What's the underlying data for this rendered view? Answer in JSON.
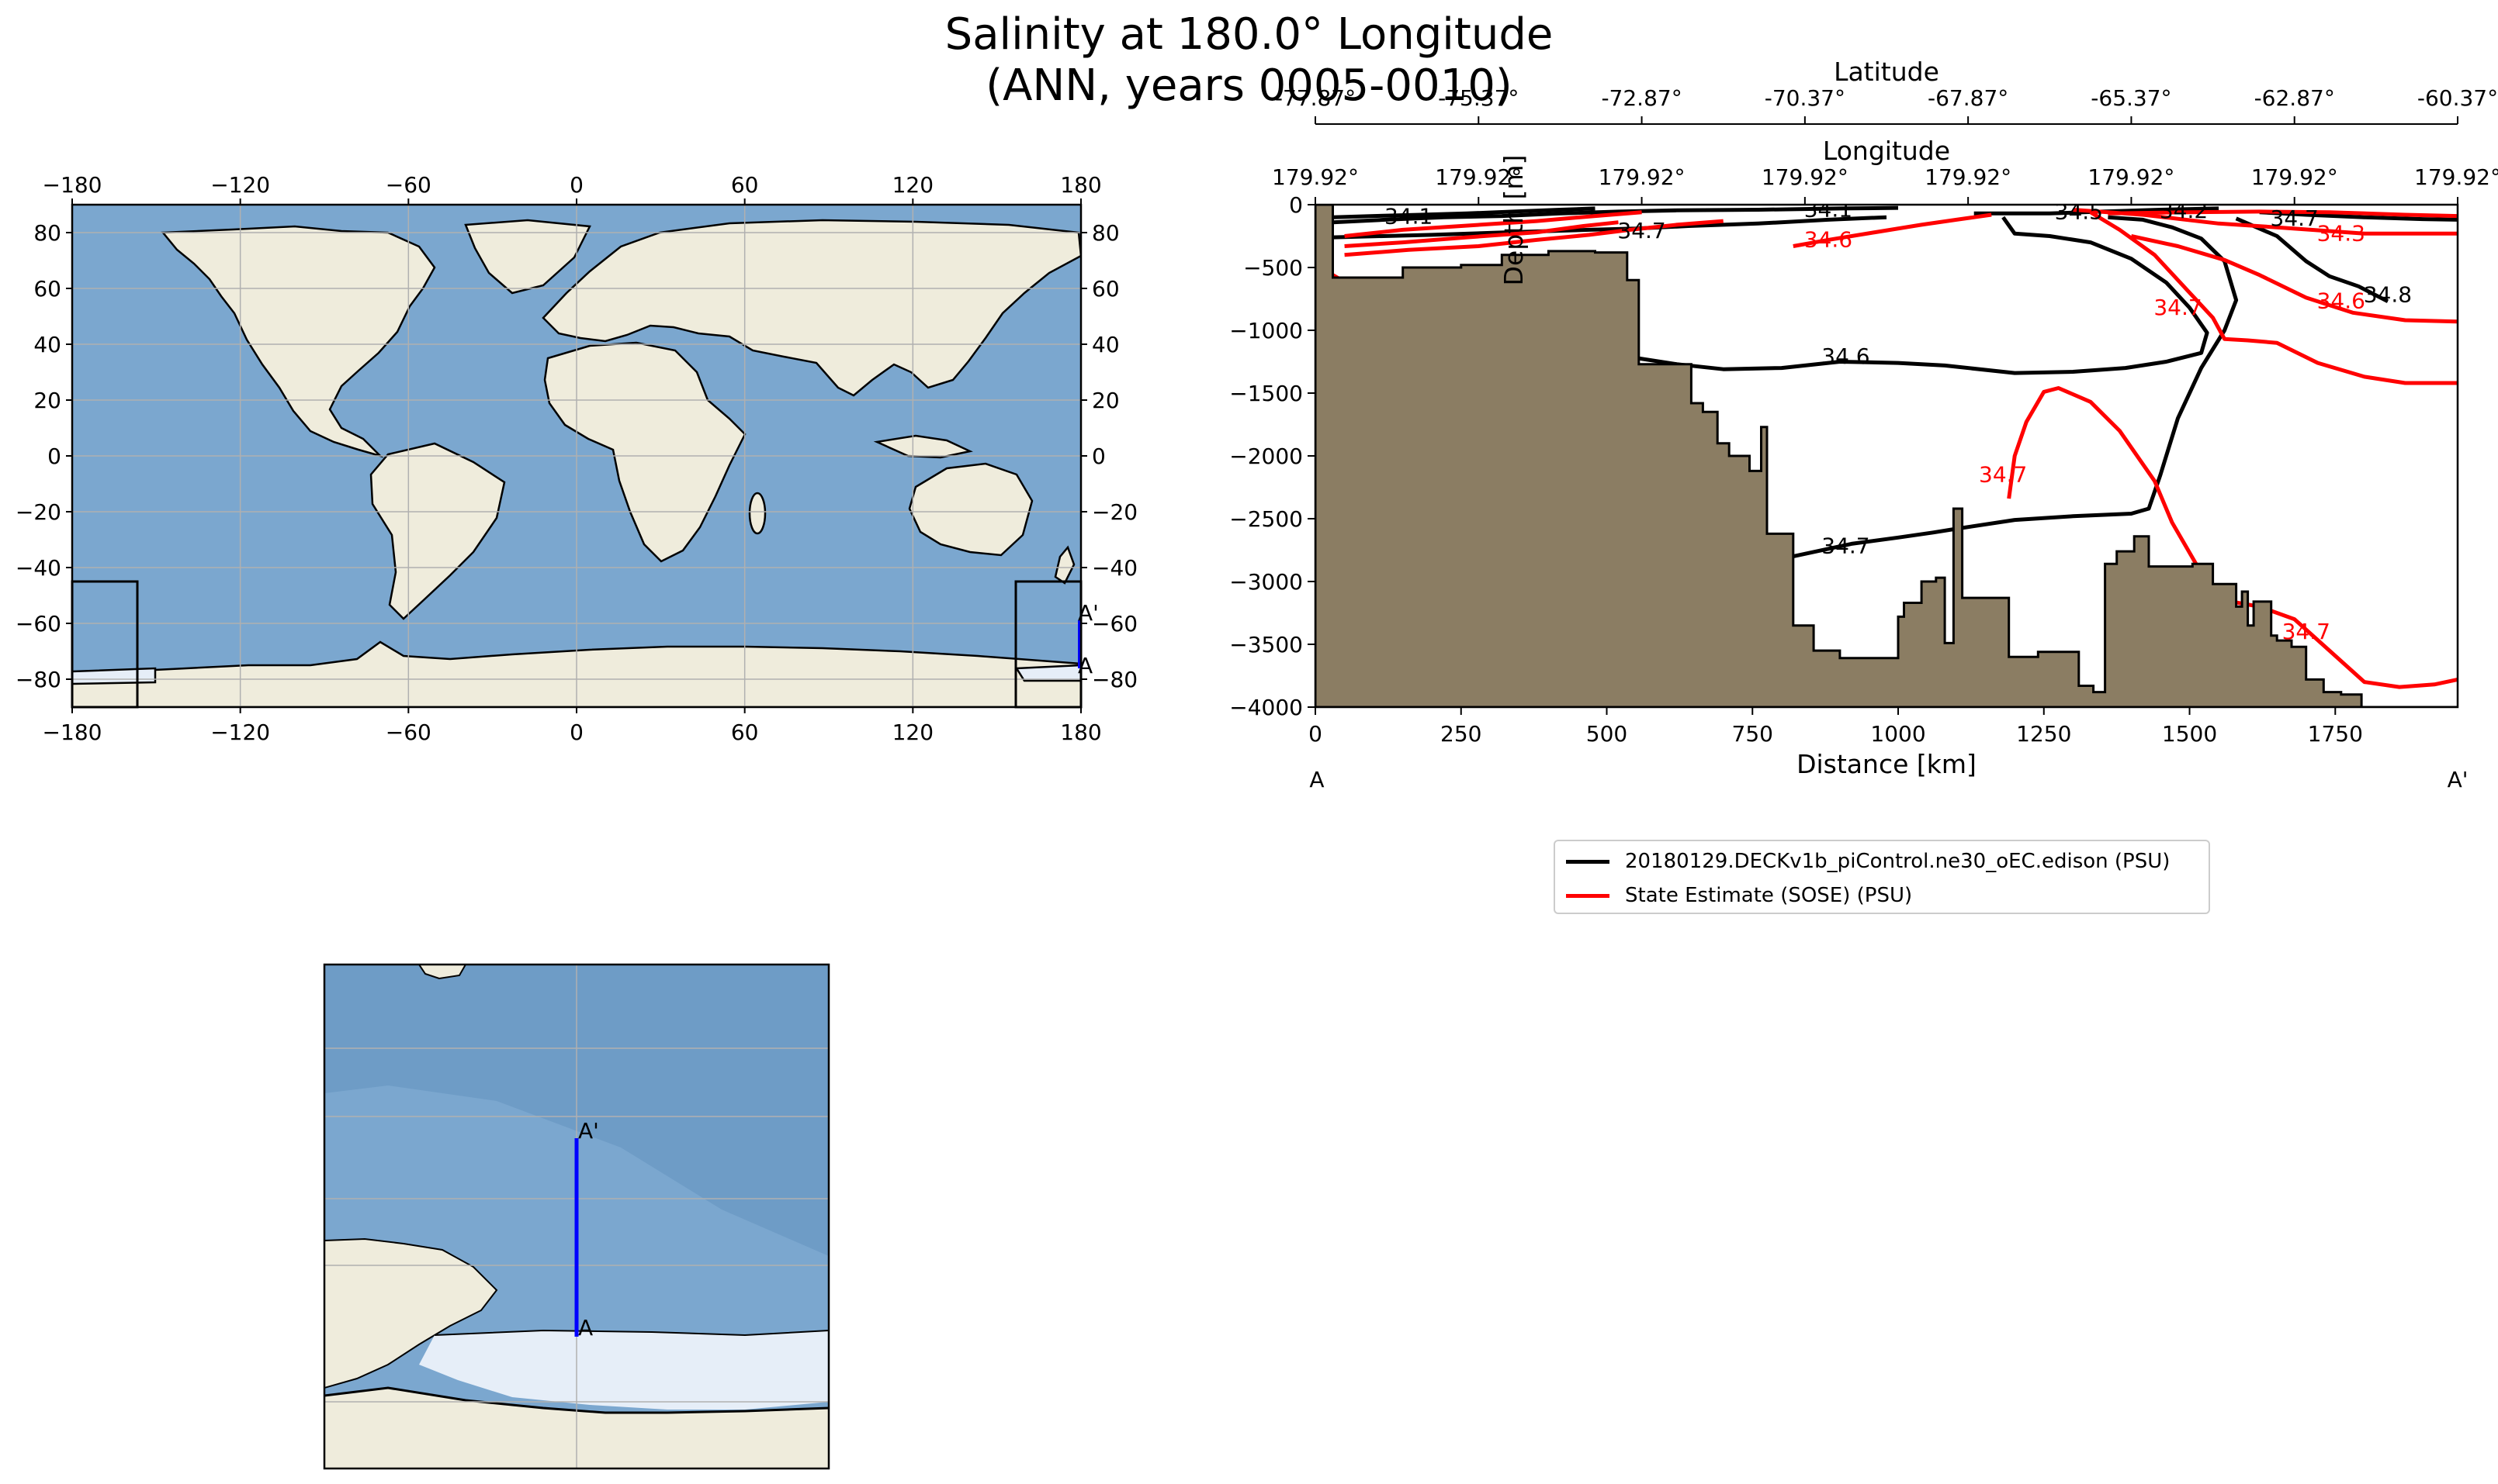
{
  "title_line1": "Salinity at 180.0° Longitude",
  "title_line2": "(ANN, years 0005-0010)",
  "colors": {
    "land": "#efecdc",
    "ocean": "#7ba7cf",
    "ocean_deep": "#6e9cc6",
    "ice": "#e6eef8",
    "bathymetry": "#8b7d63",
    "model": "#000000",
    "obs": "#ff0000",
    "transect": "#0000ff"
  },
  "map": {
    "top_ticks": [
      "−180",
      "−120",
      "−60",
      "0",
      "60",
      "120",
      "180"
    ],
    "bottom_ticks": [
      "−180",
      "−120",
      "−60",
      "0",
      "60",
      "120",
      "180"
    ],
    "left_ticks": [
      "80",
      "60",
      "40",
      "20",
      "0",
      "−20",
      "−40",
      "−60",
      "−80"
    ],
    "right_ticks": [
      "80",
      "60",
      "40",
      "20",
      "0",
      "−20",
      "−40",
      "−60",
      "−80"
    ],
    "label_start": "A",
    "label_end": "A'"
  },
  "inset": {
    "label_start": "A",
    "label_end": "A'"
  },
  "section": {
    "latitude_label": "Latitude",
    "longitude_label": "Longitude",
    "latitude_ticks": [
      "-77.87°",
      "-75.37°",
      "-72.87°",
      "-70.37°",
      "-67.87°",
      "-65.37°",
      "-62.87°",
      "-60.37°"
    ],
    "longitude_ticks": [
      "179.92°",
      "179.92°",
      "179.92°",
      "179.92°",
      "179.92°",
      "179.92°",
      "179.92°",
      "179.92°"
    ],
    "start_label": "A",
    "end_label": "A'"
  },
  "legend": [
    {
      "label": "20180129.DECKv1b_piControl.ne30_oEC.edison (PSU)",
      "color": "#000000"
    },
    {
      "label": "State Estimate (SOSE) (PSU)",
      "color": "#ff0000"
    }
  ],
  "chart_data": {
    "type": "contour-section",
    "xlabel": "Distance [km]",
    "ylabel": "Depth [m]",
    "xlim": [
      0,
      1960
    ],
    "ylim": [
      -4000,
      0
    ],
    "x_ticks": [
      0,
      250,
      500,
      750,
      1000,
      1250,
      1500,
      1750
    ],
    "y_ticks": [
      0,
      -500,
      -1000,
      -1500,
      -2000,
      -2500,
      -3000,
      -3500,
      -4000
    ],
    "bathymetry": [
      [
        0,
        -4000
      ],
      [
        0,
        0
      ],
      [
        30,
        0
      ],
      [
        30,
        -580
      ],
      [
        150,
        -580
      ],
      [
        150,
        -500
      ],
      [
        250,
        -500
      ],
      [
        250,
        -480
      ],
      [
        320,
        -480
      ],
      [
        320,
        -400
      ],
      [
        400,
        -400
      ],
      [
        400,
        -370
      ],
      [
        480,
        -370
      ],
      [
        480,
        -380
      ],
      [
        535,
        -380
      ],
      [
        535,
        -600
      ],
      [
        555,
        -600
      ],
      [
        555,
        -1270
      ],
      [
        600,
        -1270
      ],
      [
        600,
        -1270
      ],
      [
        645,
        -1270
      ],
      [
        645,
        -1580
      ],
      [
        665,
        -1580
      ],
      [
        665,
        -1650
      ],
      [
        690,
        -1650
      ],
      [
        690,
        -1900
      ],
      [
        710,
        -1900
      ],
      [
        710,
        -2000
      ],
      [
        745,
        -2000
      ],
      [
        745,
        -2120
      ],
      [
        765,
        -2120
      ],
      [
        765,
        -1770
      ],
      [
        775,
        -1770
      ],
      [
        775,
        -2620
      ],
      [
        820,
        -2620
      ],
      [
        820,
        -3350
      ],
      [
        855,
        -3350
      ],
      [
        855,
        -3550
      ],
      [
        900,
        -3550
      ],
      [
        900,
        -3610
      ],
      [
        960,
        -3610
      ],
      [
        960,
        -3610
      ],
      [
        1000,
        -3610
      ],
      [
        1000,
        -3280
      ],
      [
        1010,
        -3280
      ],
      [
        1010,
        -3170
      ],
      [
        1040,
        -3170
      ],
      [
        1040,
        -3000
      ],
      [
        1065,
        -3000
      ],
      [
        1065,
        -2970
      ],
      [
        1080,
        -2970
      ],
      [
        1080,
        -3490
      ],
      [
        1095,
        -3490
      ],
      [
        1095,
        -2420
      ],
      [
        1110,
        -2420
      ],
      [
        1110,
        -3130
      ],
      [
        1190,
        -3130
      ],
      [
        1190,
        -3600
      ],
      [
        1240,
        -3600
      ],
      [
        1240,
        -3560
      ],
      [
        1310,
        -3560
      ],
      [
        1310,
        -3830
      ],
      [
        1335,
        -3830
      ],
      [
        1335,
        -3880
      ],
      [
        1355,
        -3880
      ],
      [
        1355,
        -2860
      ],
      [
        1375,
        -2860
      ],
      [
        1375,
        -2760
      ],
      [
        1405,
        -2760
      ],
      [
        1405,
        -2640
      ],
      [
        1430,
        -2640
      ],
      [
        1430,
        -2880
      ],
      [
        1505,
        -2880
      ],
      [
        1505,
        -2860
      ],
      [
        1540,
        -2860
      ],
      [
        1540,
        -3020
      ],
      [
        1580,
        -3020
      ],
      [
        1580,
        -3200
      ],
      [
        1590,
        -3200
      ],
      [
        1590,
        -3080
      ],
      [
        1600,
        -3080
      ],
      [
        1600,
        -3350
      ],
      [
        1610,
        -3350
      ],
      [
        1610,
        -3160
      ],
      [
        1640,
        -3160
      ],
      [
        1640,
        -3430
      ],
      [
        1650,
        -3430
      ],
      [
        1650,
        -3470
      ],
      [
        1675,
        -3470
      ],
      [
        1675,
        -3520
      ],
      [
        1700,
        -3520
      ],
      [
        1700,
        -3780
      ],
      [
        1730,
        -3780
      ],
      [
        1730,
        -3880
      ],
      [
        1760,
        -3880
      ],
      [
        1760,
        -3900
      ],
      [
        1795,
        -3900
      ],
      [
        1795,
        -4000
      ],
      [
        1960,
        -4000
      ]
    ],
    "model_contours": [
      {
        "level": 34.1,
        "points": [
          [
            30,
            -100
          ],
          [
            100,
            -90
          ],
          [
            180,
            -80
          ],
          [
            260,
            -70
          ],
          [
            340,
            -55
          ],
          [
            420,
            -40
          ],
          [
            480,
            -30
          ]
        ]
      },
      {
        "level": 34.3,
        "points": [
          [
            30,
            -140
          ],
          [
            120,
            -120
          ],
          [
            220,
            -100
          ],
          [
            320,
            -90
          ],
          [
            420,
            -70
          ],
          [
            520,
            -55
          ],
          [
            620,
            -45
          ],
          [
            760,
            -40
          ],
          [
            900,
            -30
          ],
          [
            1000,
            -25
          ]
        ]
      },
      {
        "level": 34.5,
        "points": [
          [
            1130,
            -70
          ],
          [
            1200,
            -70
          ],
          [
            1260,
            -70
          ],
          [
            1350,
            -55
          ],
          [
            1450,
            -40
          ],
          [
            1550,
            -30
          ]
        ]
      },
      {
        "level": 34.7,
        "points": [
          [
            30,
            -260
          ],
          [
            200,
            -240
          ],
          [
            330,
            -220
          ],
          [
            470,
            -200
          ],
          [
            550,
            -190
          ],
          [
            640,
            -170
          ],
          [
            760,
            -150
          ],
          [
            880,
            -120
          ],
          [
            980,
            -100
          ]
        ]
      },
      {
        "level": 34.7,
        "points": [
          [
            1620,
            -60
          ],
          [
            1700,
            -80
          ],
          [
            1800,
            -100
          ],
          [
            1900,
            -115
          ],
          [
            1960,
            -120
          ]
        ]
      },
      {
        "level": 34.8,
        "points": [
          [
            1580,
            -110
          ],
          [
            1650,
            -250
          ],
          [
            1700,
            -450
          ],
          [
            1740,
            -570
          ],
          [
            1790,
            -650
          ],
          [
            1840,
            -770
          ]
        ]
      },
      {
        "level": 34.6,
        "points": [
          [
            550,
            -1220
          ],
          [
            620,
            -1270
          ],
          [
            700,
            -1310
          ],
          [
            800,
            -1300
          ],
          [
            900,
            -1250
          ],
          [
            1000,
            -1260
          ],
          [
            1080,
            -1280
          ],
          [
            1200,
            -1340
          ],
          [
            1300,
            -1330
          ],
          [
            1390,
            -1300
          ],
          [
            1460,
            -1250
          ],
          [
            1520,
            -1180
          ],
          [
            1530,
            -1020
          ],
          [
            1500,
            -820
          ],
          [
            1460,
            -620
          ],
          [
            1400,
            -430
          ],
          [
            1330,
            -300
          ],
          [
            1260,
            -250
          ],
          [
            1200,
            -230
          ],
          [
            1180,
            -100
          ]
        ]
      },
      {
        "level": 34.7,
        "points": [
          [
            820,
            -2800
          ],
          [
            920,
            -2700
          ],
          [
            1000,
            -2650
          ],
          [
            1060,
            -2610
          ],
          [
            1100,
            -2580
          ],
          [
            1200,
            -2510
          ],
          [
            1300,
            -2480
          ],
          [
            1400,
            -2460
          ],
          [
            1430,
            -2420
          ],
          [
            1450,
            -2150
          ],
          [
            1480,
            -1700
          ],
          [
            1520,
            -1300
          ],
          [
            1560,
            -1000
          ],
          [
            1580,
            -760
          ],
          [
            1560,
            -450
          ],
          [
            1520,
            -270
          ],
          [
            1470,
            -180
          ],
          [
            1420,
            -120
          ],
          [
            1360,
            -100
          ]
        ]
      }
    ],
    "obs_contours": [
      {
        "level": 34.3,
        "points": [
          [
            50,
            -250
          ],
          [
            150,
            -200
          ],
          [
            250,
            -170
          ],
          [
            380,
            -130
          ],
          [
            480,
            -90
          ],
          [
            560,
            -60
          ]
        ]
      },
      {
        "level": 34.5,
        "points": [
          [
            50,
            -330
          ],
          [
            150,
            -300
          ],
          [
            260,
            -260
          ],
          [
            380,
            -220
          ],
          [
            460,
            -170
          ],
          [
            520,
            -140
          ]
        ]
      },
      {
        "level": 34.6,
        "points": [
          [
            50,
            -400
          ],
          [
            160,
            -360
          ],
          [
            280,
            -330
          ],
          [
            380,
            -280
          ],
          [
            470,
            -240
          ],
          [
            540,
            -200
          ],
          [
            620,
            -160
          ],
          [
            700,
            -130
          ]
        ]
      },
      {
        "level": 34.6,
        "points": [
          [
            820,
            -330
          ],
          [
            880,
            -280
          ],
          [
            960,
            -220
          ],
          [
            1040,
            -160
          ],
          [
            1100,
            -120
          ],
          [
            1160,
            -80
          ]
        ]
      },
      {
        "level": 34.7,
        "points": [
          [
            30,
            -560
          ],
          [
            60,
            -640
          ],
          [
            80,
            -650
          ]
        ]
      },
      {
        "level": 34.5,
        "points": [
          [
            1360,
            -70
          ],
          [
            1500,
            -60
          ],
          [
            1620,
            -55
          ],
          [
            1740,
            -60
          ],
          [
            1870,
            -80
          ],
          [
            1960,
            -90
          ]
        ]
      },
      {
        "level": 34.3,
        "points": [
          [
            1300,
            -40
          ],
          [
            1420,
            -80
          ],
          [
            1550,
            -150
          ],
          [
            1650,
            -180
          ],
          [
            1800,
            -230
          ],
          [
            1960,
            -230
          ]
        ]
      },
      {
        "level": 34.6,
        "points": [
          [
            1400,
            -250
          ],
          [
            1480,
            -330
          ],
          [
            1560,
            -440
          ],
          [
            1620,
            -560
          ],
          [
            1700,
            -740
          ],
          [
            1780,
            -860
          ],
          [
            1870,
            -920
          ],
          [
            1960,
            -930
          ]
        ]
      },
      {
        "level": 34.7,
        "points": [
          [
            1330,
            -60
          ],
          [
            1380,
            -200
          ],
          [
            1440,
            -400
          ],
          [
            1500,
            -700
          ],
          [
            1540,
            -900
          ],
          [
            1560,
            -1070
          ],
          [
            1600,
            -1080
          ],
          [
            1650,
            -1100
          ],
          [
            1720,
            -1260
          ],
          [
            1800,
            -1370
          ],
          [
            1870,
            -1420
          ],
          [
            1960,
            -1420
          ]
        ]
      },
      {
        "level": 34.7,
        "points": [
          [
            1190,
            -2340
          ],
          [
            1200,
            -2000
          ],
          [
            1220,
            -1730
          ],
          [
            1250,
            -1490
          ],
          [
            1275,
            -1460
          ],
          [
            1330,
            -1570
          ],
          [
            1380,
            -1800
          ],
          [
            1440,
            -2200
          ],
          [
            1470,
            -2530
          ],
          [
            1510,
            -2850
          ],
          [
            1540,
            -3080
          ],
          [
            1560,
            -3150
          ],
          [
            1620,
            -3200
          ],
          [
            1680,
            -3300
          ],
          [
            1740,
            -3550
          ],
          [
            1800,
            -3800
          ],
          [
            1860,
            -3840
          ],
          [
            1920,
            -3820
          ],
          [
            1960,
            -3780
          ]
        ]
      },
      {
        "level": 34.7,
        "points": [
          [
            1010,
            -3530
          ],
          [
            1015,
            -3420
          ]
        ]
      }
    ],
    "model_labels": [
      {
        "text": "34.1",
        "x": 160,
        "y": -95
      },
      {
        "text": "34.7",
        "x": 560,
        "y": -210
      },
      {
        "text": "34.1",
        "x": 880,
        "y": -40
      },
      {
        "text": "34.6",
        "x": 910,
        "y": -1210
      },
      {
        "text": "34.7",
        "x": 910,
        "y": -2720
      },
      {
        "text": "34.5",
        "x": 1310,
        "y": -60
      },
      {
        "text": "34.2",
        "x": 1490,
        "y": -50
      },
      {
        "text": "34.7",
        "x": 1680,
        "y": -110
      },
      {
        "text": "34.8",
        "x": 1840,
        "y": -720
      }
    ],
    "obs_labels": [
      {
        "text": "34.6",
        "x": 880,
        "y": -280
      },
      {
        "text": "34.3",
        "x": 1760,
        "y": -230
      },
      {
        "text": "34.6",
        "x": 1760,
        "y": -770
      },
      {
        "text": "34.7",
        "x": 1480,
        "y": -820
      },
      {
        "text": "34.7",
        "x": 1180,
        "y": -2150
      },
      {
        "text": "34.7",
        "x": 1700,
        "y": -3400
      }
    ]
  }
}
